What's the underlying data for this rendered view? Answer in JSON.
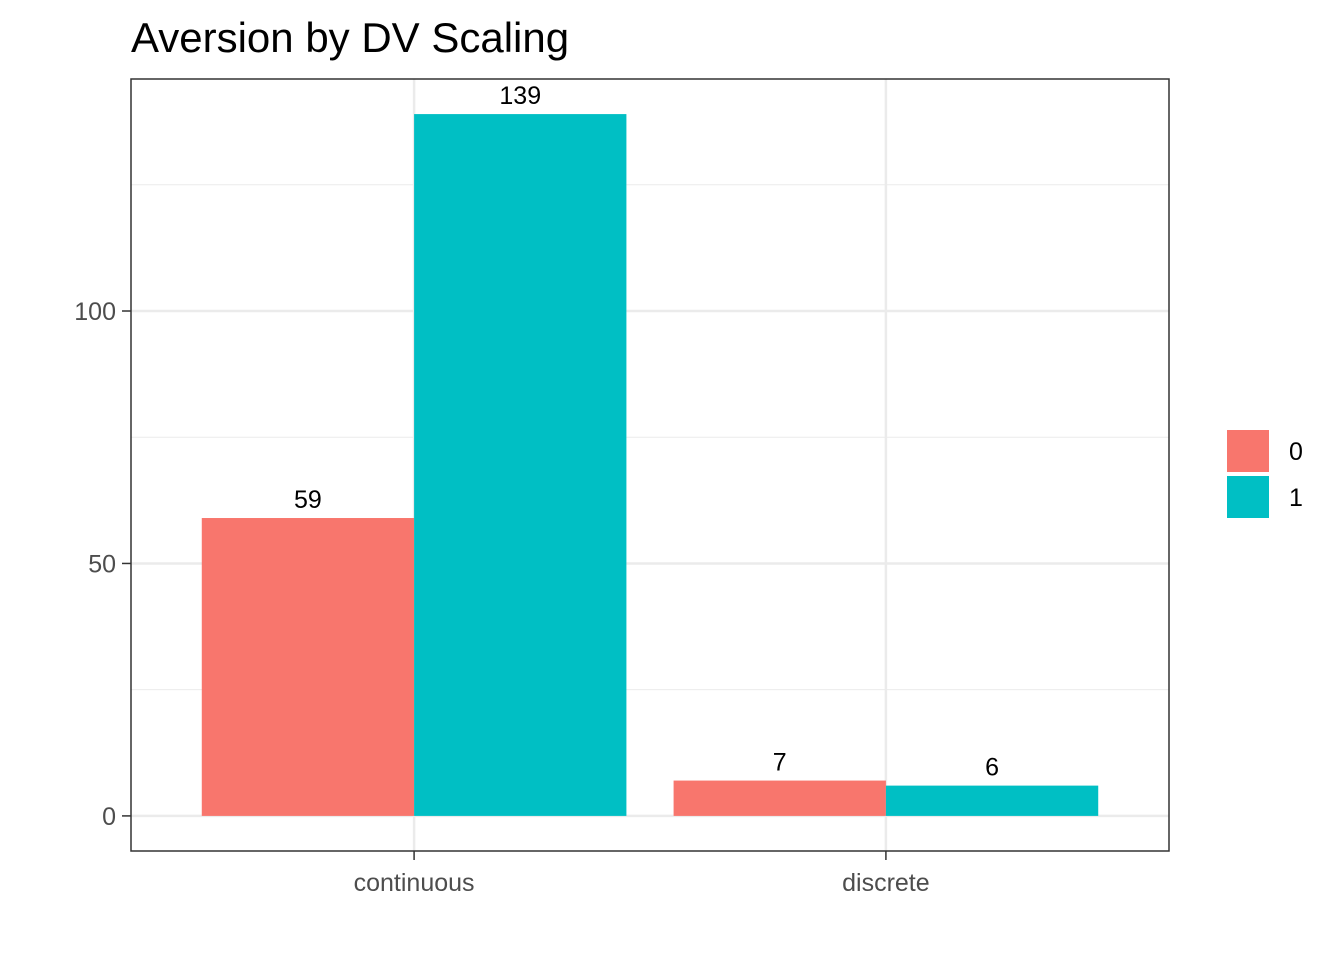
{
  "chart_data": {
    "type": "bar",
    "title": "Aversion by DV Scaling",
    "xlabel": "",
    "ylabel": "",
    "categories": [
      "continuous",
      "discrete"
    ],
    "series": [
      {
        "name": "0",
        "values": [
          59,
          7
        ],
        "color": "#F8766D"
      },
      {
        "name": "1",
        "values": [
          139,
          6
        ],
        "color": "#00BFC4"
      }
    ],
    "ylim": [
      -6.95,
      145.95
    ],
    "y_ticks": [
      0,
      50,
      100
    ],
    "y_tick_labels": [
      "0",
      "50",
      "100"
    ],
    "grid": true,
    "legend_position": "right",
    "show_data_labels": true
  }
}
